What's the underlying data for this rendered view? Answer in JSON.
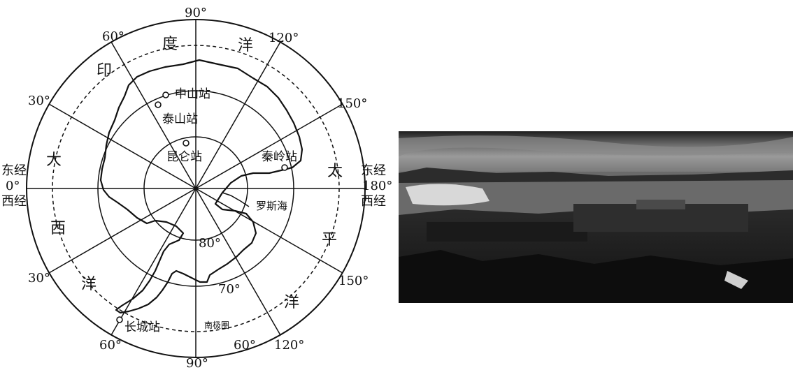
{
  "map": {
    "longitudes": {
      "top": "90°",
      "top_left": "60°",
      "top_right": "120°",
      "left_upper": "30°",
      "right_upper": "150°",
      "left_lower": "30°",
      "right_lower": "150°",
      "bottom_left": "60°",
      "bottom_right": "120°",
      "bottom": "90°",
      "bottom_inner_60": "60°",
      "left_east_line1": "东经",
      "left_east_line2": "0°",
      "left_west": "西经",
      "right_east": "东经",
      "right_180": "180°",
      "right_west": "西经"
    },
    "latitudes": {
      "lat80": "80°",
      "lat70": "70°"
    },
    "ocean_chars": {
      "indian_1": "印",
      "indian_2": "度",
      "indian_3": "洋",
      "atlantic_1": "大",
      "atlantic_2": "西",
      "atlantic_3": "洋",
      "pacific_1": "太",
      "pacific_2": "平",
      "pacific_3": "洋"
    },
    "stations": {
      "zhongshan": "中山站",
      "taishan": "泰山站",
      "kunlun": "昆仑站",
      "qinling": "秦岭站",
      "changcheng": "长城站"
    },
    "ross_sea": "罗斯海",
    "antarctic_circle": "南极圈"
  },
  "photo": {
    "subject": "research-station-photo"
  }
}
